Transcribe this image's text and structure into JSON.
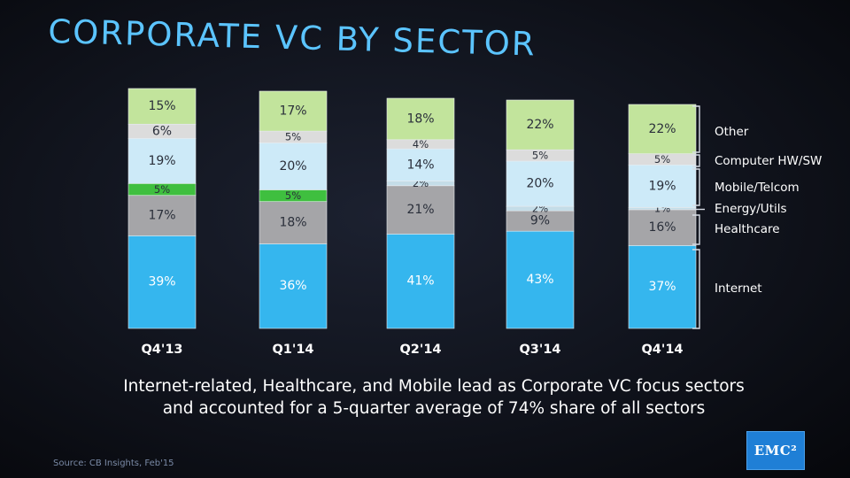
{
  "slide": {
    "title": "Corporate VC by Sector",
    "caption_line1": "Internet-related, Healthcare, and Mobile lead as Corporate VC focus sectors",
    "caption_line2": "and accounted for a 5-quarter average of 74% share of all sectors",
    "source": "Source: CB Insights, Feb'15",
    "logo_text": "EMC²"
  },
  "colors": {
    "Internet": "#35b6ee",
    "Healthcare": "#a5a5a8",
    "Energy/Utils": "#c4dde8",
    "Mobile/Telcom": "#cdeaf8",
    "Computer HW/SW": "#dcdcdc",
    "Other": "#c2e49c",
    "energy_highlight": "#3fbf3f"
  },
  "chart_data": {
    "type": "bar",
    "stacked": true,
    "percent": true,
    "title": "Corporate VC by Sector",
    "categories": [
      "Q4'13",
      "Q1'14",
      "Q2'14",
      "Q3'14",
      "Q4'14"
    ],
    "series": [
      {
        "name": "Internet",
        "values": [
          39,
          36,
          41,
          43,
          37
        ]
      },
      {
        "name": "Healthcare",
        "values": [
          17,
          18,
          21,
          9,
          16
        ]
      },
      {
        "name": "Energy/Utils",
        "values": [
          5,
          5,
          2,
          2,
          1
        ]
      },
      {
        "name": "Mobile/Telcom",
        "values": [
          19,
          20,
          14,
          20,
          19
        ]
      },
      {
        "name": "Computer HW/SW",
        "values": [
          6,
          5,
          4,
          5,
          5
        ]
      },
      {
        "name": "Other",
        "values": [
          15,
          17,
          18,
          22,
          22
        ]
      }
    ],
    "value_labels": [
      [
        "39%",
        "17%",
        "5%",
        "19%",
        "6%",
        "15%"
      ],
      [
        "36%",
        "18%",
        "5%",
        "20%",
        "5%",
        "17%"
      ],
      [
        "41%",
        "21%",
        "2%",
        "14%",
        "4%",
        "18%"
      ],
      [
        "43%",
        "9%",
        "2%",
        "20%",
        "5%",
        "22%"
      ],
      [
        "37%",
        "16%",
        "1%",
        "19%",
        "5%",
        "22%"
      ]
    ],
    "legend_order_top_to_bottom": [
      "Other",
      "Computer HW/SW",
      "Mobile/Telcom",
      "Energy/Utils",
      "Healthcare",
      "Internet"
    ],
    "legend_position": "right",
    "ylim": [
      0,
      100
    ],
    "xlabel": "",
    "ylabel": ""
  }
}
